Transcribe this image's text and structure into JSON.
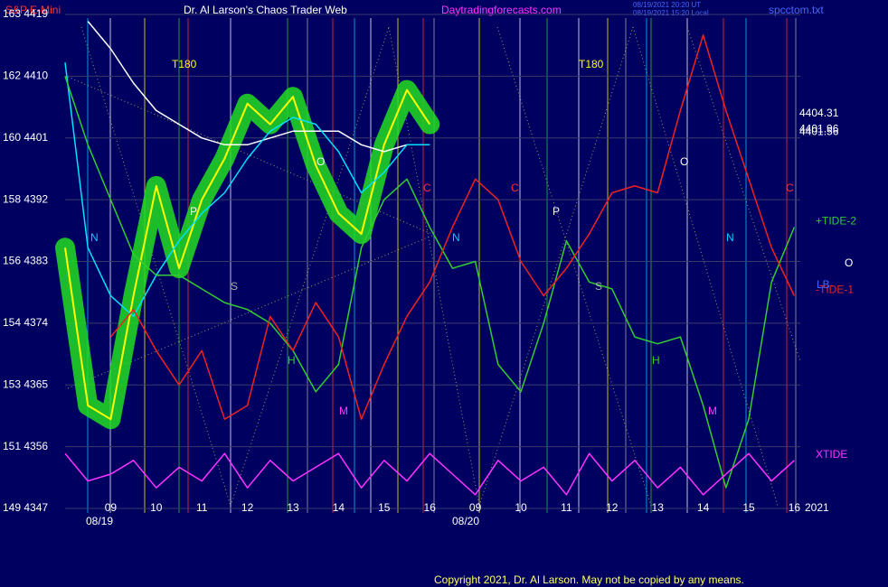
{
  "chart_data": {
    "type": "line",
    "title": "Dr. Al Larson's Chaos Trader Web",
    "instrument": "S&P E-Mini",
    "site": "Daytradingforecasts.com",
    "timestamps": [
      "08/19/2021 20:20 UT",
      "08/19/2021 15:20 Local"
    ],
    "file": "spcctom.txt",
    "copyright": "Copyright 2021, Dr. Al Larson. May not be copied by any means.",
    "categories": [
      null,
      null,
      "09",
      null,
      "10",
      null,
      "11",
      null,
      "12",
      null,
      "13",
      null,
      "14",
      null,
      "15",
      null,
      "16",
      null,
      "09",
      null,
      "10",
      null,
      "11",
      null,
      "12",
      null,
      "13",
      null,
      "14",
      null,
      "15",
      null,
      "16"
    ],
    "dates": [
      "08/19",
      "08/20"
    ],
    "year": "2021",
    "ylim": [
      4347,
      4419
    ],
    "yticks": [
      {
        "value": 4347,
        "label": "149 4347"
      },
      {
        "value": 4356,
        "label": "151 4356"
      },
      {
        "value": 4365,
        "label": "153 4365"
      },
      {
        "value": 4374,
        "label": "154 4374"
      },
      {
        "value": 4383,
        "label": "156 4383"
      },
      {
        "value": 4392,
        "label": "158 4392"
      },
      {
        "value": 4401,
        "label": "160 4401"
      },
      {
        "value": 4410,
        "label": "162 4410"
      },
      {
        "value": 4419,
        "label": "163 4419"
      }
    ],
    "grid": true,
    "series": [
      {
        "color": "#ffff00",
        "glow": "#22dd22",
        "values": [
          4385,
          4362,
          4360,
          4378,
          4394,
          4382,
          4392,
          4398,
          4406,
          4403,
          4407,
          4397,
          4390,
          4387,
          4400,
          4408,
          4403,
          null,
          null,
          null,
          null,
          null,
          null,
          null,
          null,
          null,
          null,
          null,
          null,
          null,
          null,
          null,
          null
        ]
      },
      {
        "color": "#ffffff",
        "values": [
          null,
          4418,
          4414,
          4409,
          4405,
          4403,
          4401,
          4400,
          4400,
          4401,
          4402,
          4402,
          4402,
          4400,
          4399,
          4400,
          4400,
          null,
          null,
          null,
          null,
          null,
          null,
          null,
          null,
          null,
          null,
          null,
          null,
          null,
          null,
          null,
          null
        ]
      },
      {
        "color": "#00e0ff",
        "values": [
          4412,
          4385,
          4378,
          4375,
          4381,
          4386,
          4390,
          4393,
          4398,
          4402,
          4404,
          4403,
          4399,
          4393,
          4396,
          4400,
          4400,
          null,
          null,
          null,
          null,
          null,
          null,
          null,
          null,
          null,
          null,
          null,
          null,
          null,
          null,
          null,
          null
        ]
      },
      {
        "name": "+TIDE-2",
        "color": "#33cc33",
        "values": [
          4410,
          4400,
          4392,
          4384,
          4381,
          4381,
          4379,
          4377,
          4376,
          4374,
          4370,
          4364,
          4368,
          4385,
          4392,
          4395,
          4388,
          4382,
          4383,
          4368,
          4364,
          4374,
          4386,
          4380,
          4379,
          4372,
          4371,
          4372,
          4362,
          4350,
          4360,
          4380,
          4388
        ]
      },
      {
        "name": "-TIDE-1",
        "color": "#ee2222",
        "values": [
          null,
          null,
          4372,
          4376,
          4370,
          4365,
          4370,
          4360,
          4362,
          4375,
          4370,
          4377,
          4372,
          4360,
          4368,
          4375,
          4380,
          4388,
          4395,
          4392,
          4383,
          4378,
          4382,
          4387,
          4393,
          4394,
          4393,
          4405,
          4416,
          4405,
          4395,
          4385,
          4378
        ]
      },
      {
        "name": "XTIDE",
        "color": "#ff33ff",
        "values": [
          4355,
          4351,
          4352,
          4354,
          4350,
          4353,
          4351,
          4355,
          4350,
          4354,
          4351,
          4353,
          4355,
          4350,
          4354,
          4351,
          4355,
          4352,
          4349,
          4354,
          4351,
          4353,
          4349,
          4355,
          4351,
          4354,
          4350,
          4353,
          4349,
          4352,
          4355,
          4351,
          4354
        ]
      }
    ],
    "price_labels": [
      4404.31,
      4401.96,
      4401.56
    ],
    "annotations": [
      "T180",
      "T180",
      "N",
      "N",
      "N",
      "P",
      "P",
      "S",
      "S",
      "H",
      "H",
      "O",
      "O",
      "O",
      "C",
      "C",
      "C",
      "M",
      "M",
      "LB"
    ]
  }
}
